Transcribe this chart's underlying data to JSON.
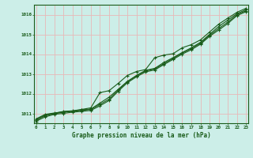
{
  "title": "Graphe pression niveau de la mer (hPa)",
  "bg_color": "#cceee8",
  "grid_color": "#e8b8b8",
  "line_color": "#1a5c1a",
  "x_min": 0,
  "x_max": 23,
  "y_min": 1010.5,
  "y_max": 1016.5,
  "y_ticks": [
    1011,
    1012,
    1013,
    1014,
    1015,
    1016
  ],
  "x_ticks": [
    0,
    1,
    2,
    3,
    4,
    5,
    6,
    7,
    8,
    9,
    10,
    11,
    12,
    13,
    14,
    15,
    16,
    17,
    18,
    19,
    20,
    21,
    22,
    23
  ],
  "line1": [
    1010.68,
    1010.92,
    1011.0,
    1011.1,
    1011.13,
    1011.2,
    1011.28,
    1012.05,
    1012.15,
    1012.52,
    1012.92,
    1013.12,
    1013.22,
    1013.82,
    1013.95,
    1014.02,
    1014.32,
    1014.48,
    1014.72,
    1015.12,
    1015.52,
    1015.82,
    1016.12,
    1016.32
  ],
  "line2": [
    1010.72,
    1010.95,
    1011.02,
    1011.08,
    1011.12,
    1011.18,
    1011.22,
    1011.52,
    1011.82,
    1012.22,
    1012.62,
    1012.92,
    1013.18,
    1013.28,
    1013.58,
    1013.82,
    1014.08,
    1014.32,
    1014.6,
    1015.0,
    1015.4,
    1015.72,
    1016.05,
    1016.25
  ],
  "line3": [
    1010.65,
    1010.88,
    1010.98,
    1011.06,
    1011.1,
    1011.15,
    1011.2,
    1011.45,
    1011.72,
    1012.18,
    1012.6,
    1012.9,
    1013.15,
    1013.25,
    1013.52,
    1013.78,
    1014.05,
    1014.28,
    1014.55,
    1014.95,
    1015.3,
    1015.62,
    1016.0,
    1016.2
  ],
  "line4": [
    1010.6,
    1010.82,
    1010.95,
    1011.0,
    1011.06,
    1011.1,
    1011.15,
    1011.38,
    1011.65,
    1012.12,
    1012.55,
    1012.85,
    1013.1,
    1013.2,
    1013.47,
    1013.73,
    1014.0,
    1014.22,
    1014.5,
    1014.9,
    1015.22,
    1015.55,
    1015.95,
    1016.15
  ]
}
